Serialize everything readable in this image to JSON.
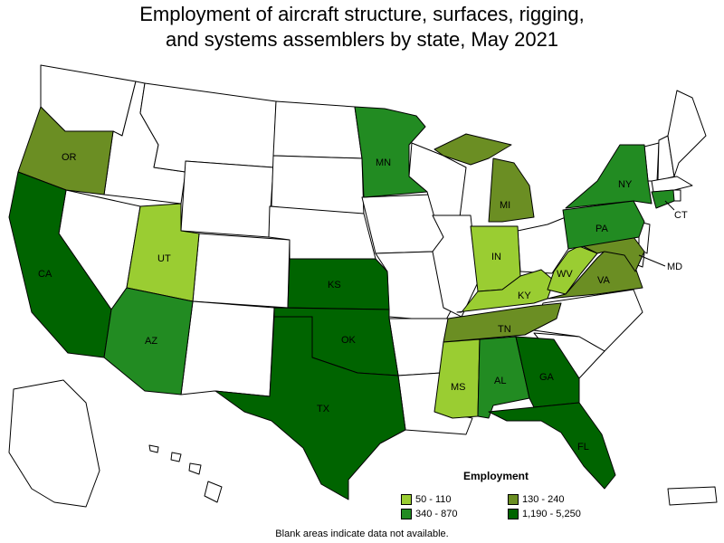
{
  "title": {
    "line1": "Employment of aircraft structure, surfaces, rigging,",
    "line2": "and systems assemblers by state, May 2021"
  },
  "colors": {
    "no_data": "#ffffff",
    "bin1": "#9acd32",
    "bin2": "#6b8e23",
    "bin3": "#228b22",
    "bin4": "#006400"
  },
  "legend": {
    "title": "Employment",
    "items": [
      {
        "label": "50 - 110",
        "color": "#9acd32"
      },
      {
        "label": "130 - 240",
        "color": "#6b8e23"
      },
      {
        "label": "340 - 870",
        "color": "#228b22"
      },
      {
        "label": "1,190 - 5,250",
        "color": "#006400"
      }
    ]
  },
  "footnote": "Blank areas indicate data not available.",
  "map_data": {
    "type": "choropleth",
    "states_with_data": [
      {
        "abbr": "CA",
        "bin": "1,190 - 5,250"
      },
      {
        "abbr": "OR",
        "bin": "130 - 240"
      },
      {
        "abbr": "UT",
        "bin": "50 - 110"
      },
      {
        "abbr": "AZ",
        "bin": "340 - 870"
      },
      {
        "abbr": "KS",
        "bin": "1,190 - 5,250"
      },
      {
        "abbr": "OK",
        "bin": "1,190 - 5,250"
      },
      {
        "abbr": "TX",
        "bin": "1,190 - 5,250"
      },
      {
        "abbr": "MN",
        "bin": "340 - 870"
      },
      {
        "abbr": "MI",
        "bin": "130 - 240"
      },
      {
        "abbr": "IN",
        "bin": "50 - 110"
      },
      {
        "abbr": "KY",
        "bin": "50 - 110"
      },
      {
        "abbr": "TN",
        "bin": "130 - 240"
      },
      {
        "abbr": "MS",
        "bin": "50 - 110"
      },
      {
        "abbr": "AL",
        "bin": "340 - 870"
      },
      {
        "abbr": "GA",
        "bin": "1,190 - 5,250"
      },
      {
        "abbr": "FL",
        "bin": "1,190 - 5,250"
      },
      {
        "abbr": "WV",
        "bin": "50 - 110"
      },
      {
        "abbr": "VA",
        "bin": "130 - 240"
      },
      {
        "abbr": "MD",
        "bin": "130 - 240"
      },
      {
        "abbr": "PA",
        "bin": "340 - 870"
      },
      {
        "abbr": "NY",
        "bin": "340 - 870"
      },
      {
        "abbr": "CT",
        "bin": "340 - 870"
      }
    ]
  }
}
